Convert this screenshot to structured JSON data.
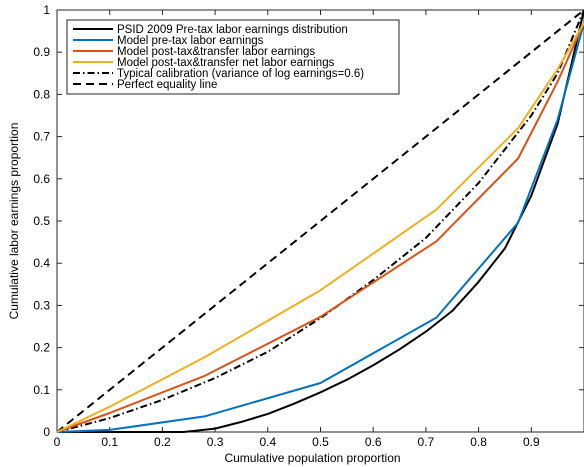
{
  "chart_data": {
    "type": "line",
    "title": "",
    "xlabel": "Cumulative population proportion",
    "ylabel": "Cumulative labor earnings proportion",
    "xlim": [
      0,
      1
    ],
    "ylim": [
      0,
      1
    ],
    "xticks": [
      0,
      0.1,
      0.2,
      0.3,
      0.4,
      0.5,
      0.6,
      0.7,
      0.8,
      0.9
    ],
    "xtick_labels": [
      "0",
      "0.1",
      "0.2",
      "0.3",
      "0.4",
      "0.5",
      "0.6",
      "0.7",
      "0.8",
      "0.9"
    ],
    "yticks": [
      0,
      0.1,
      0.2,
      0.3,
      0.4,
      0.5,
      0.6,
      0.7,
      0.8,
      0.9,
      1
    ],
    "ytick_labels": [
      "0",
      "0.1",
      "0.2",
      "0.3",
      "0.4",
      "0.5",
      "0.6",
      "0.7",
      "0.8",
      "0.9",
      "1"
    ],
    "grid": false,
    "legend_position": "top-left",
    "series": [
      {
        "name": "PSID 2009 Pre-tax labor earnings distribution",
        "color": "#000000",
        "style": "solid",
        "x": [
          0,
          0.24,
          0.3,
          0.35,
          0.4,
          0.45,
          0.5,
          0.55,
          0.6,
          0.65,
          0.7,
          0.75,
          0.8,
          0.85,
          0.9,
          0.95,
          1.0
        ],
        "y": [
          0,
          0,
          0.008,
          0.024,
          0.043,
          0.067,
          0.094,
          0.124,
          0.158,
          0.196,
          0.238,
          0.287,
          0.356,
          0.435,
          0.56,
          0.73,
          1.0
        ]
      },
      {
        "name": "Model pre-tax labor earnings",
        "color": "#0072bd",
        "style": "solid",
        "x": [
          0,
          0.1,
          0.28,
          0.5,
          0.72,
          0.875,
          0.95,
          1.0
        ],
        "y": [
          0,
          0.005,
          0.037,
          0.116,
          0.271,
          0.496,
          0.74,
          0.97
        ]
      },
      {
        "name": "Model post-tax&transfer labor earnings",
        "color": "#d95319",
        "style": "solid",
        "x": [
          0,
          0.1,
          0.28,
          0.5,
          0.72,
          0.875,
          0.95,
          1.0
        ],
        "y": [
          0,
          0.045,
          0.133,
          0.273,
          0.452,
          0.648,
          0.83,
          0.97
        ]
      },
      {
        "name": "Model post-tax&transfer net labor earnings",
        "color": "#edb120",
        "style": "solid",
        "x": [
          0,
          0.1,
          0.28,
          0.5,
          0.72,
          0.875,
          0.95,
          1.0
        ],
        "y": [
          0,
          0.06,
          0.177,
          0.336,
          0.527,
          0.72,
          0.86,
          0.97
        ]
      },
      {
        "name": "Typical calibration (variance of log earnings=0.6)",
        "color": "#000000",
        "style": "dashdot",
        "x": [
          0,
          0.1,
          0.2,
          0.3,
          0.4,
          0.5,
          0.6,
          0.7,
          0.8,
          0.9,
          0.95,
          1.0
        ],
        "y": [
          0,
          0.033,
          0.076,
          0.128,
          0.19,
          0.27,
          0.36,
          0.46,
          0.59,
          0.75,
          0.85,
          1.0
        ]
      },
      {
        "name": "Perfect equality line",
        "color": "#000000",
        "style": "dashed",
        "x": [
          0,
          1
        ],
        "y": [
          0,
          1
        ]
      }
    ]
  }
}
